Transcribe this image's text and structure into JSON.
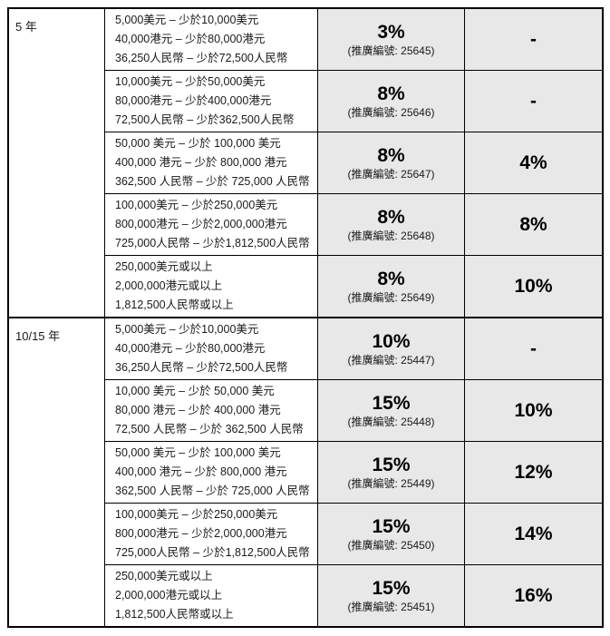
{
  "table": {
    "shaded_bg": "#e8e8e8",
    "border_color": "#000000",
    "sections": [
      {
        "term": "5 年",
        "rows": [
          {
            "amounts": [
              "5,000美元 – 少於10,000美元",
              "40,000港元 – 少於80,000港元",
              "36,250人民幣 – 少於72,500人民幣"
            ],
            "rate": "3%",
            "promo": "(推廣編號: 25645)",
            "bonus": "-"
          },
          {
            "amounts": [
              "10,000美元 – 少於50,000美元",
              "80,000港元 – 少於400,000港元",
              "72,500人民幣 – 少於362,500人民幣"
            ],
            "rate": "8%",
            "promo": "(推廣編號: 25646)",
            "bonus": "-"
          },
          {
            "amounts": [
              "50,000 美元 – 少於 100,000 美元",
              "400,000 港元 – 少於 800,000 港元",
              "362,500 人民幣 – 少於 725,000 人民幣"
            ],
            "rate": "8%",
            "promo": "(推廣編號: 25647)",
            "bonus": "4%"
          },
          {
            "amounts": [
              "100,000美元 – 少於250,000美元",
              "800,000港元 – 少於2,000,000港元",
              "725,000人民幣 – 少於1,812,500人民幣"
            ],
            "rate": "8%",
            "promo": "(推廣編號: 25648)",
            "bonus": "8%"
          },
          {
            "amounts": [
              "250,000美元或以上",
              "2,000,000港元或以上",
              "1,812,500人民幣或以上"
            ],
            "rate": "8%",
            "promo": "(推廣編號: 25649)",
            "bonus": "10%"
          }
        ]
      },
      {
        "term": "10/15 年",
        "rows": [
          {
            "amounts": [
              "5,000美元 – 少於10,000美元",
              "40,000港元 – 少於80,000港元",
              "36,250人民幣 – 少於72,500人民幣"
            ],
            "rate": "10%",
            "promo": "(推廣編號: 25447)",
            "bonus": "-"
          },
          {
            "amounts": [
              "10,000 美元 – 少於 50,000 美元",
              "80,000 港元 – 少於 400,000 港元",
              "72,500 人民幣 – 少於 362,500 人民幣"
            ],
            "rate": "15%",
            "promo": "(推廣編號: 25448)",
            "bonus": "10%"
          },
          {
            "amounts": [
              "50,000 美元 – 少於 100,000 美元",
              "400,000 港元 – 少於 800,000 港元",
              "362,500 人民幣 – 少於 725,000 人民幣"
            ],
            "rate": "15%",
            "promo": "(推廣編號: 25449)",
            "bonus": "12%"
          },
          {
            "amounts": [
              "100,000美元 – 少於250,000美元",
              "800,000港元 – 少於2,000,000港元",
              "725,000人民幣 – 少於1,812,500人民幣"
            ],
            "rate": "15%",
            "promo": "(推廣編號: 25450)",
            "bonus": "14%"
          },
          {
            "amounts": [
              "250,000美元或以上",
              "2,000,000港元或以上",
              "1,812,500人民幣或以上"
            ],
            "rate": "15%",
            "promo": "(推廣編號: 25451)",
            "bonus": "16%"
          }
        ]
      }
    ]
  }
}
